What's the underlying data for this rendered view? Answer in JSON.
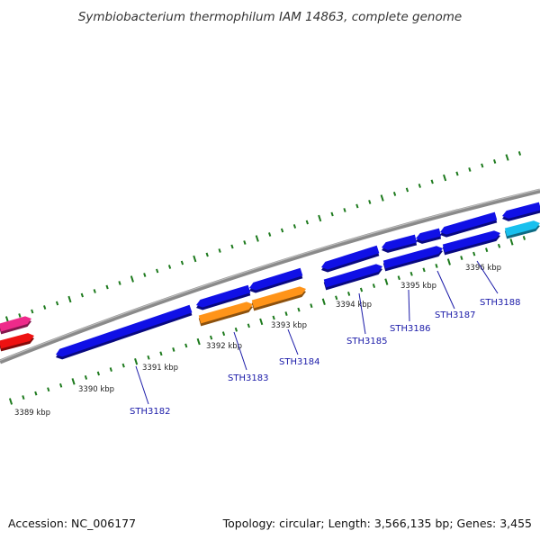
{
  "title": "Symbiobacterium thermophilum IAM 14863, complete genome",
  "footer": {
    "accession": "Accession: NC_006177",
    "summary": "Topology: circular; Length: 3,566,135 bp; Genes: 3,455"
  },
  "colors": {
    "backbone": "#8a8a8a",
    "ticks": "#1d7a1d",
    "gene_blue": "#1010e6",
    "gene_orange": "#ff9419",
    "gene_cyan": "#19c0ee",
    "gene_red": "#ee1111",
    "gene_pink": "#ee2a8a",
    "label": "#1a1aa8"
  },
  "kbp_marks": [
    {
      "label": "3389 kbp",
      "kbp": 3389
    },
    {
      "label": "3390 kbp",
      "kbp": 3390
    },
    {
      "label": "3391 kbp",
      "kbp": 3391
    },
    {
      "label": "3392 kbp",
      "kbp": 3392
    },
    {
      "label": "3393 kbp",
      "kbp": 3393
    },
    {
      "label": "3394 kbp",
      "kbp": 3394
    },
    {
      "label": "3395 kbp",
      "kbp": 3395
    },
    {
      "label": "3396 kbp",
      "kbp": 3396
    }
  ],
  "gene_labels": [
    {
      "name": "STH3182"
    },
    {
      "name": "STH3183"
    },
    {
      "name": "STH3184"
    },
    {
      "name": "STH3185"
    },
    {
      "name": "STH3186"
    },
    {
      "name": "STH3187"
    },
    {
      "name": "STH3188"
    }
  ]
}
